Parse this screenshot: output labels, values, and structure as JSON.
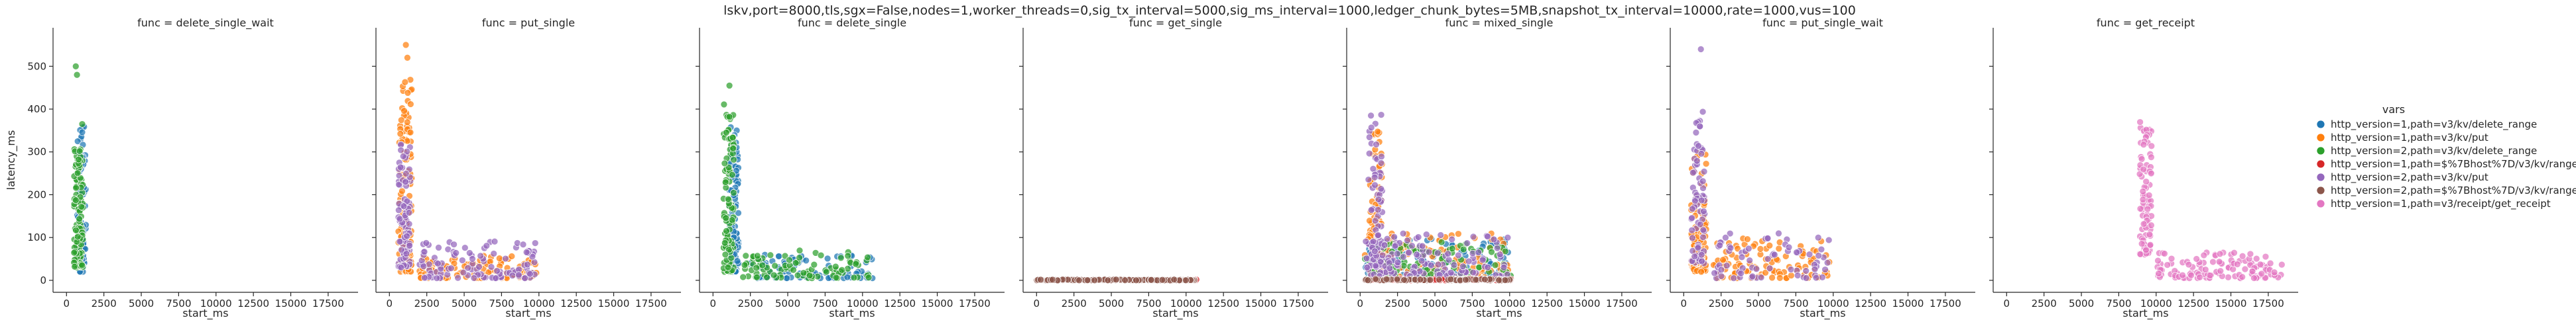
{
  "suptitle": "lskv,port=8000,tls,sgx=False,nodes=1,worker_threads=0,sig_tx_interval=5000,sig_ms_interval=1000,ledger_chunk_bytes=5MB,snapshot_tx_interval=10000,rate=1000,vus=100",
  "ylabel": "latency_ms",
  "xlabel": "start_ms",
  "x_ticks": [
    "0",
    "2500",
    "5000",
    "7500",
    "10000",
    "12500",
    "15000",
    "17500"
  ],
  "y_ticks": [
    "0",
    "100",
    "200",
    "300",
    "400",
    "500"
  ],
  "legend": {
    "title": "vars",
    "items": [
      {
        "label": "http_version=1,path=v3/kv/delete_range",
        "color": "#1f77b4"
      },
      {
        "label": "http_version=1,path=v3/kv/put",
        "color": "#ff7f0e"
      },
      {
        "label": "http_version=2,path=v3/kv/delete_range",
        "color": "#2ca02c"
      },
      {
        "label": "http_version=1,path=$%7Bhost%7D/v3/kv/range",
        "color": "#d62728"
      },
      {
        "label": "http_version=2,path=v3/kv/put",
        "color": "#9467bd"
      },
      {
        "label": "http_version=2,path=$%7Bhost%7D/v3/kv/range",
        "color": "#8c564b"
      },
      {
        "label": "http_version=1,path=v3/receipt/get_receipt",
        "color": "#e377c2"
      }
    ]
  },
  "chart_data": {
    "type": "scatter",
    "x_label": "start_ms",
    "y_label": "latency_ms",
    "xlim": [
      -900,
      19500
    ],
    "ylim": [
      -28,
      590
    ],
    "grid": false,
    "legend_position": "right",
    "facets": [
      {
        "title": "func = delete_single_wait",
        "series": [
          {
            "name": "http_version=1,path=v3/kv/delete_range",
            "clusters": [
              {
                "x": [
                  700,
                  1300
                ],
                "y": [
                  20,
                  360
                ],
                "n": 90
              }
            ]
          },
          {
            "name": "http_version=2,path=v3/kv/delete_range",
            "clusters": [
              {
                "x": [
                  500,
                  1100
                ],
                "y": [
                  30,
                  310
                ],
                "n": 110
              }
            ],
            "points": [
              [
                620,
                500
              ],
              [
                700,
                480
              ],
              [
                1050,
                365
              ]
            ]
          }
        ]
      },
      {
        "title": "func = put_single",
        "series": [
          {
            "name": "http_version=1,path=v3/kv/put",
            "clusters": [
              {
                "x": [
                  600,
                  1500
                ],
                "y": [
                  20,
                  470
                ],
                "n": 120
              },
              {
                "x": [
                  2000,
                  10000
                ],
                "y": [
                  5,
                  60
                ],
                "n": 110
              }
            ],
            "points": [
              [
                1100,
                550
              ],
              [
                1200,
                520
              ]
            ]
          },
          {
            "name": "http_version=2,path=v3/kv/put",
            "clusters": [
              {
                "x": [
                  600,
                  1400
                ],
                "y": [
                  30,
                  330
                ],
                "n": 90
              },
              {
                "x": [
                  2000,
                  10000
                ],
                "y": [
                  5,
                  95
                ],
                "n": 110
              }
            ]
          }
        ]
      },
      {
        "title": "func = delete_single",
        "series": [
          {
            "name": "http_version=1,path=v3/kv/delete_range",
            "clusters": [
              {
                "x": [
                  1000,
                  1700
                ],
                "y": [
                  20,
                  360
                ],
                "n": 110
              },
              {
                "x": [
                  2000,
                  10800
                ],
                "y": [
                  5,
                  60
                ],
                "n": 90
              }
            ]
          },
          {
            "name": "http_version=2,path=v3/kv/delete_range",
            "clusters": [
              {
                "x": [
                  700,
                  1400
                ],
                "y": [
                  20,
                  420
                ],
                "n": 100
              },
              {
                "x": [
                  2000,
                  10500
                ],
                "y": [
                  5,
                  70
                ],
                "n": 90
              }
            ],
            "points": [
              [
                1100,
                455
              ]
            ]
          }
        ]
      },
      {
        "title": "func = get_single",
        "series": [
          {
            "name": "http_version=1,path=$%7Bhost%7D/v3/kv/range",
            "clusters": [
              {
                "x": [
                  10100,
                  10700
                ],
                "y": [
                  0,
                  3
                ],
                "n": 16
              }
            ]
          },
          {
            "name": "http_version=2,path=$%7Bhost%7D/v3/kv/range",
            "clusters": [
              {
                "x": [
                  0,
                  10600
                ],
                "y": [
                  0,
                  2
                ],
                "n": 220
              }
            ]
          }
        ]
      },
      {
        "title": "func = mixed_single",
        "series": [
          {
            "name": "http_version=1,path=v3/kv/delete_range",
            "clusters": [
              {
                "x": [
                  300,
                  10100
                ],
                "y": [
                  5,
                  100
                ],
                "n": 120
              }
            ]
          },
          {
            "name": "http_version=1,path=v3/kv/put",
            "clusters": [
              {
                "x": [
                  600,
                  1600
                ],
                "y": [
                  20,
                  360
                ],
                "n": 70
              },
              {
                "x": [
                  300,
                  10100
                ],
                "y": [
                  5,
                  110
                ],
                "n": 110
              }
            ]
          },
          {
            "name": "http_version=2,path=v3/kv/delete_range",
            "clusters": [
              {
                "x": [
                  300,
                  10100
                ],
                "y": [
                  5,
                  90
                ],
                "n": 100
              }
            ]
          },
          {
            "name": "http_version=1,path=$%7Bhost%7D/v3/kv/range",
            "clusters": [
              {
                "x": [
                  300,
                  10100
                ],
                "y": [
                  0,
                  4
                ],
                "n": 90
              }
            ]
          },
          {
            "name": "http_version=2,path=v3/kv/put",
            "clusters": [
              {
                "x": [
                  500,
                  1500
                ],
                "y": [
                  30,
                  390
                ],
                "n": 70
              },
              {
                "x": [
                  300,
                  10100
                ],
                "y": [
                  10,
                  110
                ],
                "n": 130
              }
            ]
          },
          {
            "name": "http_version=2,path=$%7Bhost%7D/v3/kv/range",
            "clusters": [
              {
                "x": [
                  300,
                  10100
                ],
                "y": [
                  0,
                  3
                ],
                "n": 90
              }
            ]
          }
        ]
      },
      {
        "title": "func = put_single_wait",
        "series": [
          {
            "name": "http_version=1,path=v3/kv/put",
            "clusters": [
              {
                "x": [
                  500,
                  1500
                ],
                "y": [
                  20,
                  300
                ],
                "n": 100
              },
              {
                "x": [
                  2000,
                  10000
                ],
                "y": [
                  5,
                  100
                ],
                "n": 100
              }
            ]
          },
          {
            "name": "http_version=2,path=v3/kv/put",
            "clusters": [
              {
                "x": [
                  500,
                  1400
                ],
                "y": [
                  40,
                  400
                ],
                "n": 70
              },
              {
                "x": [
                  2000,
                  10000
                ],
                "y": [
                  5,
                  110
                ],
                "n": 70
              }
            ],
            "points": [
              [
                1150,
                540
              ]
            ]
          }
        ]
      },
      {
        "title": "func = get_receipt",
        "series": [
          {
            "name": "http_version=1,path=v3/receipt/get_receipt",
            "clusters": [
              {
                "x": [
                  8900,
                  9700
                ],
                "y": [
                  60,
                  370
                ],
                "n": 90
              },
              {
                "x": [
                  10000,
                  18500
                ],
                "y": [
                  5,
                  65
                ],
                "n": 120
              }
            ]
          }
        ]
      }
    ]
  }
}
